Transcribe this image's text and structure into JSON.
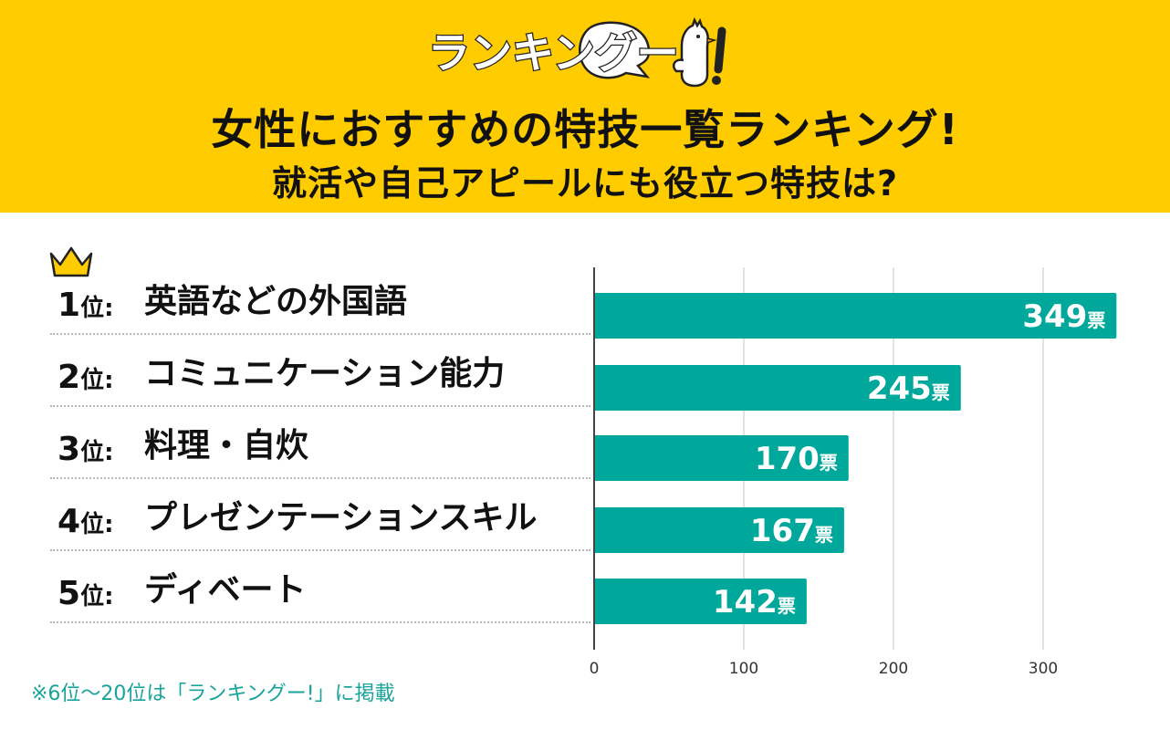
{
  "logo": {
    "text": "ランキングー!"
  },
  "header": {
    "title_line1": "女性におすすめの特技一覧ランキング!",
    "title_line2": "就活や自己アピールにも役立つ特技は?"
  },
  "rank_suffix": "位:",
  "colors": {
    "header_bg": "#ffcc00",
    "bar": "#00a89c",
    "footnote": "#1aa39a",
    "crown": "#ffcc00"
  },
  "icons": {
    "crown": "crown-icon",
    "logo": "chicken-logo"
  },
  "chart_data": {
    "type": "bar",
    "orientation": "horizontal",
    "categories": [
      "英語などの外国語",
      "コミュニケーション能力",
      "料理・自炊",
      "プレゼンテーションスキル",
      "ディベート"
    ],
    "ranks": [
      "1",
      "2",
      "3",
      "4",
      "5"
    ],
    "values": [
      349,
      245,
      170,
      167,
      142
    ],
    "value_labels": [
      "349票",
      "245票",
      "170票",
      "167票",
      "142票"
    ],
    "value_unit": "票",
    "xlim": [
      0,
      350
    ],
    "xticks": [
      0,
      100,
      200,
      300
    ],
    "grid": true
  },
  "footnote": "※6位〜20位は「ランキングー!」に掲載"
}
